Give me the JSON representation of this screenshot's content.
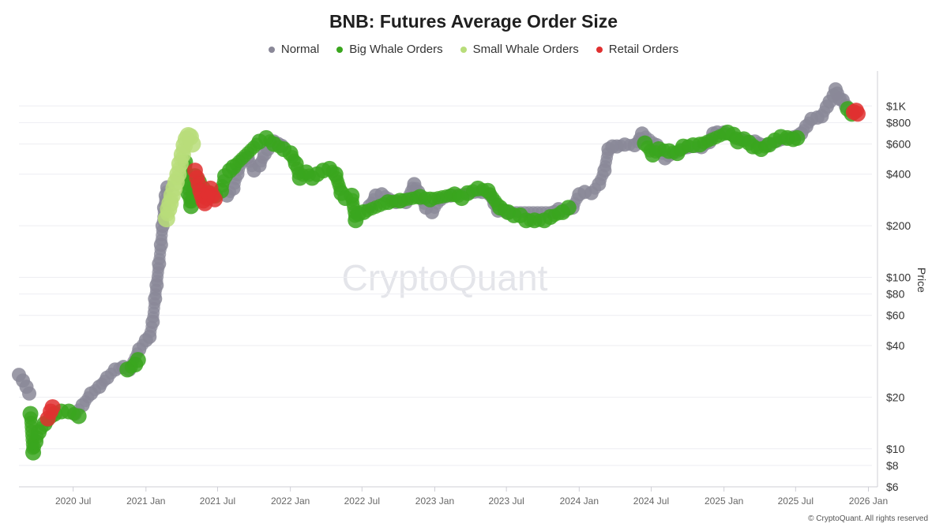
{
  "title": "BNB: Futures Average Order Size",
  "legend": [
    {
      "label": "Normal",
      "color": "#8a8898"
    },
    {
      "label": "Big Whale Orders",
      "color": "#3aa61e"
    },
    {
      "label": "Small Whale Orders",
      "color": "#b8dd7a"
    },
    {
      "label": "Retail Orders",
      "color": "#e03030"
    }
  ],
  "watermark": "CryptoQuant",
  "copyright": "© CryptoQuant. All rights reserved",
  "chart_data": {
    "type": "scatter",
    "title": "BNB: Futures Average Order Size",
    "ylabel": "Price",
    "yscale": "log",
    "ylim": [
      6,
      1500
    ],
    "xlim": [
      "2020-02-15",
      "2026-01-10"
    ],
    "x_ticks": [
      {
        "date": "2020-07-01",
        "label": "2020 Jul"
      },
      {
        "date": "2021-01-01",
        "label": "2021 Jan"
      },
      {
        "date": "2021-07-01",
        "label": "2021 Jul"
      },
      {
        "date": "2022-01-01",
        "label": "2022 Jan"
      },
      {
        "date": "2022-07-01",
        "label": "2022 Jul"
      },
      {
        "date": "2023-01-01",
        "label": "2023 Jan"
      },
      {
        "date": "2023-07-01",
        "label": "2023 Jul"
      },
      {
        "date": "2024-01-01",
        "label": "2024 Jan"
      },
      {
        "date": "2024-07-01",
        "label": "2024 Jul"
      },
      {
        "date": "2025-01-01",
        "label": "2025 Jan"
      },
      {
        "date": "2025-07-01",
        "label": "2025 Jul"
      },
      {
        "date": "2026-01-01",
        "label": "2026 Jan"
      }
    ],
    "y_ticks": [
      {
        "value": 1000,
        "label": "$1K"
      },
      {
        "value": 800,
        "label": "$800"
      },
      {
        "value": 600,
        "label": "$600"
      },
      {
        "value": 400,
        "label": "$400"
      },
      {
        "value": 200,
        "label": "$200"
      },
      {
        "value": 100,
        "label": "$100"
      },
      {
        "value": 80,
        "label": "$80"
      },
      {
        "value": 60,
        "label": "$60"
      },
      {
        "value": 40,
        "label": "$40"
      },
      {
        "value": 20,
        "label": "$20"
      },
      {
        "value": 10,
        "label": "$10"
      },
      {
        "value": 8,
        "label": "$8"
      },
      {
        "value": 6,
        "label": "$6"
      }
    ],
    "grid": "horizontal",
    "legend_position": "top-center",
    "series": [
      {
        "name": "Normal",
        "color": "#8a8898",
        "points": [
          [
            "2020-02-15",
            27
          ],
          [
            "2020-02-25",
            25
          ],
          [
            "2020-03-05",
            23
          ],
          [
            "2020-03-12",
            21
          ],
          [
            "2020-07-05",
            16
          ],
          [
            "2020-07-25",
            18
          ],
          [
            "2020-08-15",
            21
          ],
          [
            "2020-09-05",
            23
          ],
          [
            "2020-09-25",
            26
          ],
          [
            "2020-10-15",
            29
          ],
          [
            "2020-11-05",
            30
          ],
          [
            "2020-11-20",
            29
          ],
          [
            "2020-12-15",
            38
          ],
          [
            "2021-01-01",
            43
          ],
          [
            "2021-01-10",
            45
          ],
          [
            "2021-01-18",
            55
          ],
          [
            "2021-01-24",
            75
          ],
          [
            "2021-01-28",
            90
          ],
          [
            "2021-02-03",
            120
          ],
          [
            "2021-02-08",
            155
          ],
          [
            "2021-02-12",
            200
          ],
          [
            "2021-02-16",
            255
          ],
          [
            "2021-02-20",
            300
          ],
          [
            "2021-02-24",
            335
          ],
          [
            "2021-07-25",
            300
          ],
          [
            "2021-08-10",
            330
          ],
          [
            "2021-08-20",
            400
          ],
          [
            "2021-09-01",
            480
          ],
          [
            "2021-09-15",
            500
          ],
          [
            "2021-10-01",
            420
          ],
          [
            "2021-10-15",
            450
          ],
          [
            "2021-10-28",
            525
          ],
          [
            "2021-11-05",
            560
          ],
          [
            "2021-11-20",
            620
          ],
          [
            "2021-12-01",
            600
          ],
          [
            "2021-12-10",
            585
          ],
          [
            "2022-07-20",
            260
          ],
          [
            "2022-08-05",
            300
          ],
          [
            "2022-08-20",
            305
          ],
          [
            "2022-09-25",
            275
          ],
          [
            "2022-10-20",
            275
          ],
          [
            "2022-11-10",
            350
          ],
          [
            "2022-11-20",
            315
          ],
          [
            "2022-12-10",
            255
          ],
          [
            "2022-12-25",
            240
          ],
          [
            "2023-01-15",
            285
          ],
          [
            "2023-02-10",
            300
          ],
          [
            "2023-05-01",
            315
          ],
          [
            "2023-05-20",
            305
          ],
          [
            "2023-06-01",
            270
          ],
          [
            "2023-06-10",
            245
          ],
          [
            "2023-06-25",
            245
          ],
          [
            "2023-07-05",
            240
          ],
          [
            "2023-10-30",
            240
          ],
          [
            "2023-11-10",
            250
          ],
          [
            "2023-11-25",
            245
          ],
          [
            "2023-12-15",
            255
          ],
          [
            "2024-01-01",
            305
          ],
          [
            "2024-01-15",
            315
          ],
          [
            "2024-02-01",
            310
          ],
          [
            "2024-02-20",
            350
          ],
          [
            "2024-03-05",
            420
          ],
          [
            "2024-03-15",
            560
          ],
          [
            "2024-03-25",
            580
          ],
          [
            "2024-04-05",
            580
          ],
          [
            "2024-04-25",
            595
          ],
          [
            "2024-05-20",
            590
          ],
          [
            "2024-06-03",
            640
          ],
          [
            "2024-06-08",
            690
          ],
          [
            "2024-07-15",
            590
          ],
          [
            "2024-08-05",
            495
          ],
          [
            "2024-10-01",
            575
          ],
          [
            "2024-11-05",
            575
          ],
          [
            "2024-11-25",
            615
          ],
          [
            "2024-12-05",
            690
          ],
          [
            "2024-12-15",
            700
          ],
          [
            "2025-01-01",
            700
          ],
          [
            "2025-02-10",
            640
          ],
          [
            "2025-03-20",
            620
          ],
          [
            "2025-04-20",
            590
          ],
          [
            "2025-07-15",
            690
          ],
          [
            "2025-07-28",
            760
          ],
          [
            "2025-08-10",
            840
          ],
          [
            "2025-08-25",
            855
          ],
          [
            "2025-09-05",
            870
          ],
          [
            "2025-09-18",
            990
          ],
          [
            "2025-09-25",
            1060
          ],
          [
            "2025-10-05",
            1150
          ],
          [
            "2025-10-10",
            1250
          ],
          [
            "2025-10-14",
            1180
          ],
          [
            "2025-10-20",
            1100
          ],
          [
            "2025-10-28",
            1080
          ],
          [
            "2025-11-05",
            1000
          ]
        ]
      },
      {
        "name": "Big Whale Orders",
        "color": "#3aa61e",
        "points": [
          [
            "2020-03-15",
            16
          ],
          [
            "2020-03-22",
            9.5
          ],
          [
            "2020-03-28",
            11
          ],
          [
            "2020-04-05",
            12.5
          ],
          [
            "2020-04-20",
            14
          ],
          [
            "2020-05-15",
            16
          ],
          [
            "2020-06-01",
            16.5
          ],
          [
            "2020-06-20",
            16.5
          ],
          [
            "2020-07-15",
            15.5
          ],
          [
            "2020-11-15",
            29
          ],
          [
            "2020-12-05",
            31
          ],
          [
            "2020-12-12",
            33
          ],
          [
            "2021-04-10",
            470
          ],
          [
            "2021-04-18",
            310
          ],
          [
            "2021-04-25",
            260
          ],
          [
            "2021-05-05",
            390
          ],
          [
            "2021-05-15",
            360
          ],
          [
            "2021-05-25",
            330
          ],
          [
            "2021-06-10",
            310
          ],
          [
            "2021-06-25",
            300
          ],
          [
            "2021-07-10",
            320
          ],
          [
            "2021-07-20",
            390
          ],
          [
            "2021-08-01",
            420
          ],
          [
            "2021-08-10",
            440
          ],
          [
            "2021-10-15",
            620
          ],
          [
            "2021-11-01",
            650
          ],
          [
            "2021-11-20",
            600
          ],
          [
            "2021-12-15",
            560
          ],
          [
            "2022-01-01",
            530
          ],
          [
            "2022-01-15",
            460
          ],
          [
            "2022-01-25",
            380
          ],
          [
            "2022-02-10",
            410
          ],
          [
            "2022-02-25",
            380
          ],
          [
            "2022-03-10",
            400
          ],
          [
            "2022-03-25",
            420
          ],
          [
            "2022-04-10",
            430
          ],
          [
            "2022-04-25",
            400
          ],
          [
            "2022-05-10",
            310
          ],
          [
            "2022-05-20",
            290
          ],
          [
            "2022-06-05",
            300
          ],
          [
            "2022-06-15",
            215
          ],
          [
            "2022-06-22",
            235
          ],
          [
            "2022-07-05",
            240
          ],
          [
            "2022-09-05",
            275
          ],
          [
            "2022-10-05",
            280
          ],
          [
            "2022-11-25",
            295
          ],
          [
            "2022-12-20",
            285
          ],
          [
            "2023-02-20",
            305
          ],
          [
            "2023-03-10",
            290
          ],
          [
            "2023-03-25",
            310
          ],
          [
            "2023-04-20",
            330
          ],
          [
            "2023-05-15",
            320
          ],
          [
            "2023-06-15",
            255
          ],
          [
            "2023-07-05",
            240
          ],
          [
            "2023-07-20",
            230
          ],
          [
            "2023-08-05",
            230
          ],
          [
            "2023-08-20",
            215
          ],
          [
            "2023-09-10",
            215
          ],
          [
            "2023-10-05",
            215
          ],
          [
            "2023-10-20",
            225
          ],
          [
            "2023-11-20",
            240
          ],
          [
            "2023-12-05",
            255
          ],
          [
            "2024-06-15",
            605
          ],
          [
            "2024-07-05",
            520
          ],
          [
            "2024-07-20",
            560
          ],
          [
            "2024-08-15",
            545
          ],
          [
            "2024-09-05",
            530
          ],
          [
            "2024-09-20",
            580
          ],
          [
            "2024-10-15",
            590
          ],
          [
            "2024-11-01",
            595
          ],
          [
            "2025-01-10",
            700
          ],
          [
            "2025-01-25",
            680
          ],
          [
            "2025-02-05",
            620
          ],
          [
            "2025-02-20",
            640
          ],
          [
            "2025-03-05",
            610
          ],
          [
            "2025-03-15",
            580
          ],
          [
            "2025-04-05",
            560
          ],
          [
            "2025-04-25",
            595
          ],
          [
            "2025-05-10",
            630
          ],
          [
            "2025-05-25",
            660
          ],
          [
            "2025-06-10",
            650
          ],
          [
            "2025-06-25",
            640
          ],
          [
            "2025-07-05",
            650
          ],
          [
            "2025-11-10",
            960
          ],
          [
            "2025-11-20",
            900
          ]
        ]
      },
      {
        "name": "Small Whale Orders",
        "color": "#b8dd7a",
        "points": [
          [
            "2021-02-22",
            220
          ],
          [
            "2021-02-27",
            250
          ],
          [
            "2021-03-03",
            270
          ],
          [
            "2021-03-08",
            300
          ],
          [
            "2021-03-13",
            330
          ],
          [
            "2021-03-18",
            360
          ],
          [
            "2021-03-23",
            400
          ],
          [
            "2021-03-28",
            460
          ],
          [
            "2021-04-03",
            520
          ],
          [
            "2021-04-08",
            590
          ],
          [
            "2021-04-13",
            640
          ],
          [
            "2021-04-18",
            670
          ],
          [
            "2021-04-23",
            660
          ],
          [
            "2021-04-28",
            600
          ]
        ]
      },
      {
        "name": "Retail Orders",
        "color": "#e03030",
        "points": [
          [
            "2020-04-28",
            15
          ],
          [
            "2020-05-05",
            16.5
          ],
          [
            "2020-05-10",
            17.5
          ],
          [
            "2021-05-05",
            420
          ],
          [
            "2021-05-10",
            380
          ],
          [
            "2021-05-14",
            350
          ],
          [
            "2021-05-18",
            320
          ],
          [
            "2021-05-22",
            300
          ],
          [
            "2021-05-26",
            280
          ],
          [
            "2021-05-30",
            270
          ],
          [
            "2021-06-04",
            290
          ],
          [
            "2021-06-08",
            310
          ],
          [
            "2021-06-13",
            330
          ],
          [
            "2021-06-18",
            300
          ],
          [
            "2021-06-24",
            285
          ],
          [
            "2025-11-25",
            920
          ],
          [
            "2025-12-01",
            940
          ],
          [
            "2025-12-05",
            900
          ]
        ]
      }
    ]
  }
}
